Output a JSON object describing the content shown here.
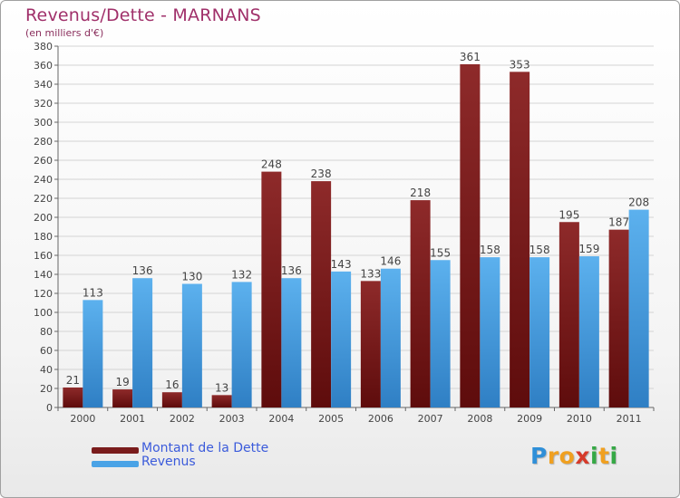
{
  "chart_data": {
    "type": "bar",
    "title": "Revenus/Dette - MARNANS",
    "subtitle": "(en milliers d'€)",
    "categories": [
      "2000",
      "2001",
      "2002",
      "2003",
      "2004",
      "2005",
      "2006",
      "2007",
      "2008",
      "2009",
      "2010",
      "2011"
    ],
    "series": [
      {
        "name": "Montant de la Dette",
        "values": [
          21,
          19,
          16,
          13,
          248,
          238,
          133,
          218,
          361,
          353,
          195,
          187
        ],
        "color": "#7a1c1c"
      },
      {
        "name": "Revenus",
        "values": [
          113,
          136,
          130,
          132,
          136,
          143,
          146,
          155,
          158,
          158,
          159,
          208
        ],
        "color": "#4aa3e6"
      }
    ],
    "ylim": [
      0,
      380
    ],
    "ytick_step": 20,
    "grid": true,
    "legend_position": "bottom-left"
  },
  "logo": {
    "text": "Proxiti",
    "letters": [
      {
        "ch": "P",
        "color": "#2f8fd8"
      },
      {
        "ch": "r",
        "color": "#f0a020"
      },
      {
        "ch": "o",
        "color": "#f0a020"
      },
      {
        "ch": "x",
        "color": "#d63a2a"
      },
      {
        "ch": "i",
        "color": "#35a845"
      },
      {
        "ch": "t",
        "color": "#f0a020"
      },
      {
        "ch": "i",
        "color": "#35a845"
      }
    ]
  }
}
